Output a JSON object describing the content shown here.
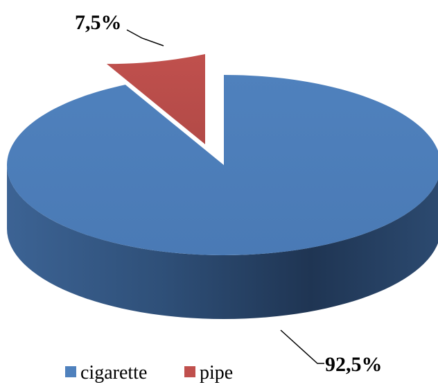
{
  "chart_data": {
    "type": "pie",
    "style": "3d-exploded",
    "categories": [
      "cigarette",
      "pipe"
    ],
    "values": [
      92.5,
      7.5
    ],
    "labels": [
      "92,5%",
      "7,5%"
    ],
    "colors": [
      "#4f81bd",
      "#c0504d"
    ],
    "legend": {
      "placement": "bottom-left",
      "entries": [
        "cigarette",
        "pipe"
      ]
    }
  }
}
